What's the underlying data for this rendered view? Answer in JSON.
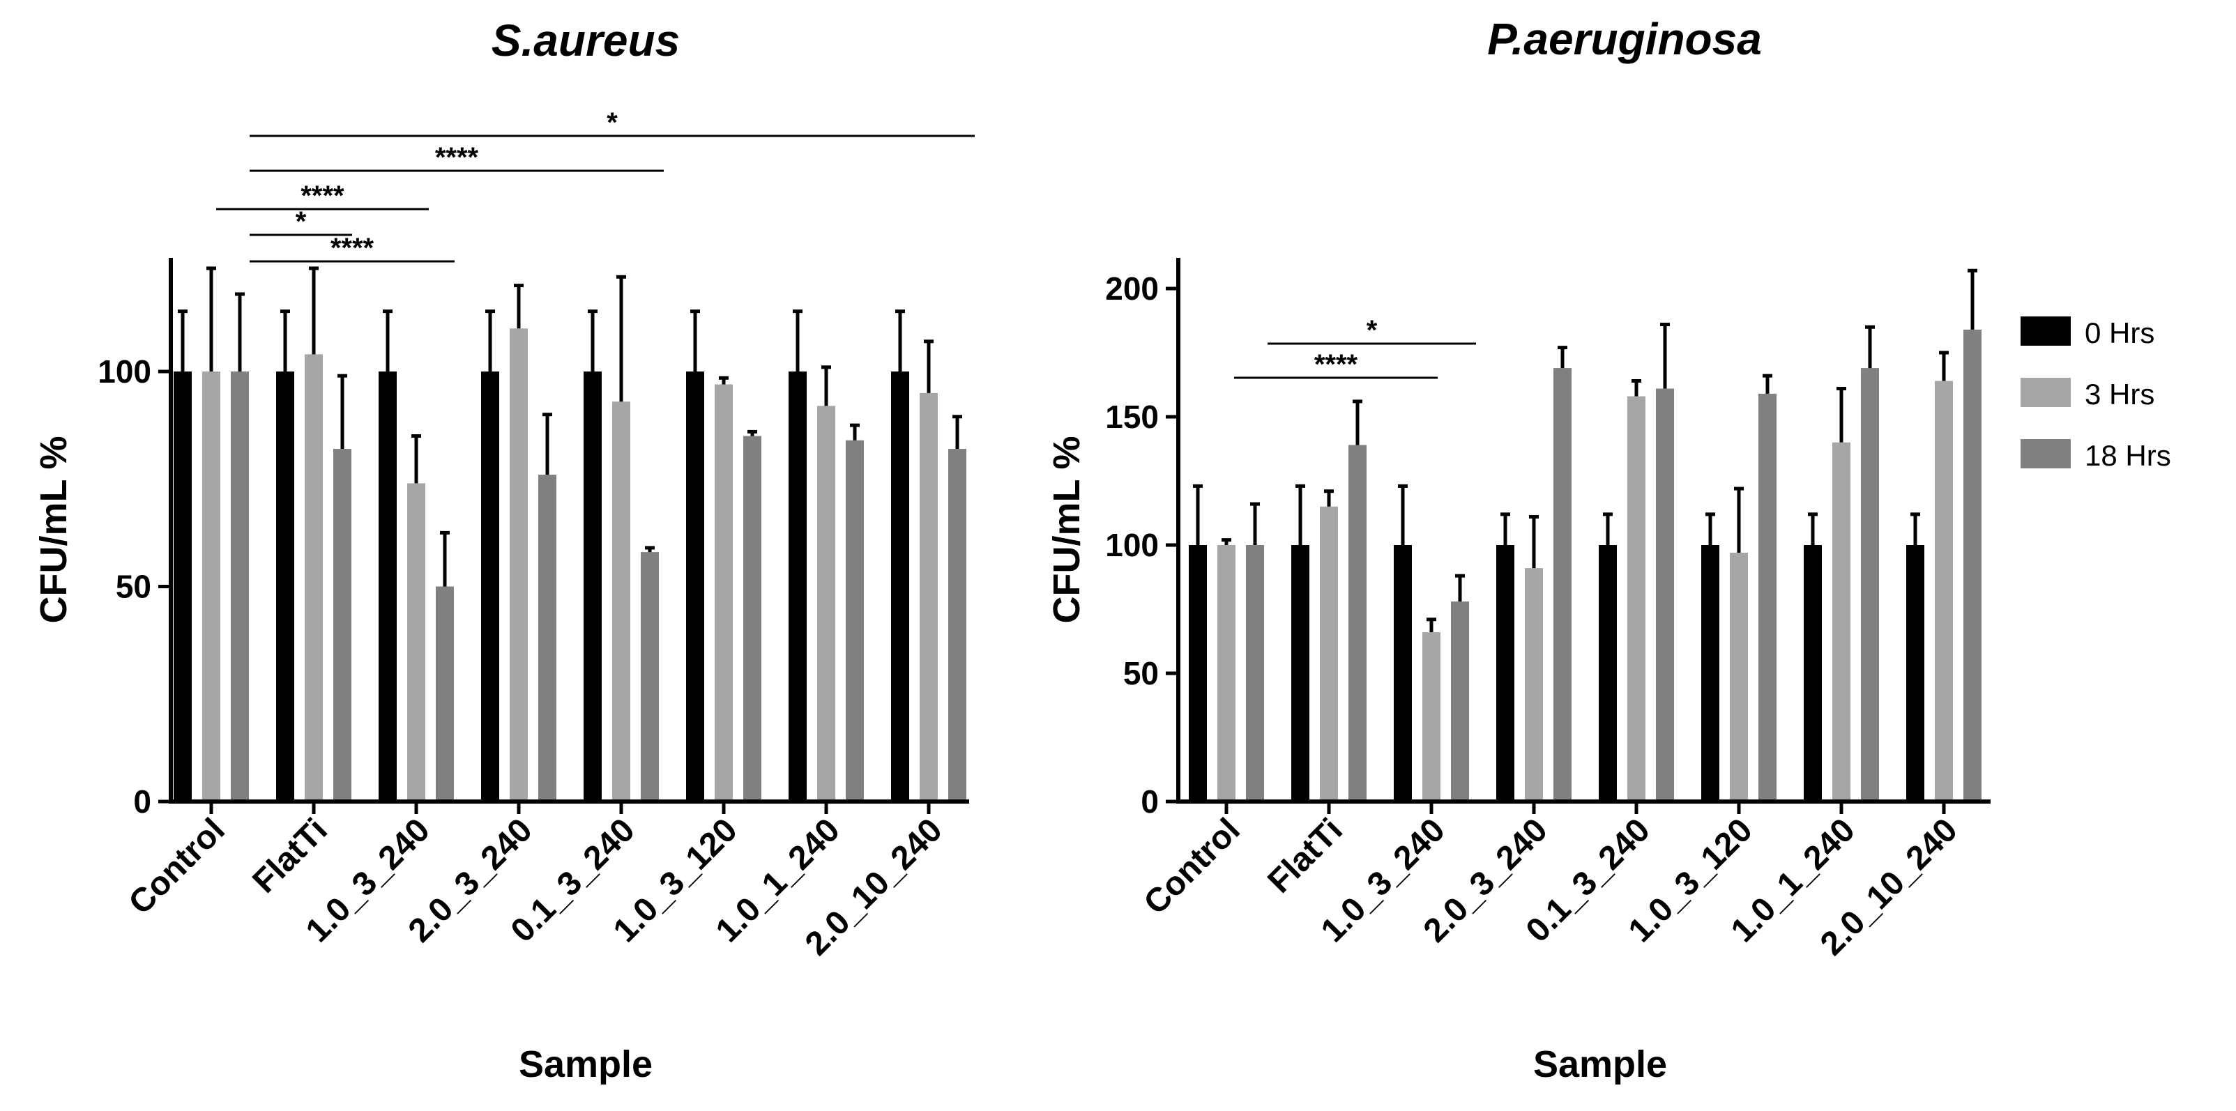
{
  "colors": {
    "series": [
      "#000000",
      "#a6a6a6",
      "#808080"
    ],
    "axis": "#000000",
    "error_bar": "#000000"
  },
  "legend": {
    "placement": "right",
    "items": [
      {
        "label": "0 Hrs",
        "color": "#000000"
      },
      {
        "label": "3 Hrs",
        "color": "#a6a6a6"
      },
      {
        "label": "18 Hrs",
        "color": "#808080"
      }
    ]
  },
  "chart_data": [
    {
      "type": "bar",
      "title": "S.aureus",
      "xlabel": "Sample",
      "ylabel": "CFU/mL %",
      "ylim": [
        0,
        125
      ],
      "yticks": [
        0,
        50,
        100
      ],
      "grid": false,
      "categories": [
        "Control",
        "FlatTi",
        "1.0_3_240",
        "2.0_3_240",
        "0.1_3_240",
        "1.0_3_120",
        "1.0_1_240",
        "2.0_10_240"
      ],
      "series": [
        {
          "name": "0 Hrs",
          "values": [
            100,
            100,
            100,
            100,
            100,
            100,
            100,
            100
          ],
          "errors": [
            14,
            14,
            14,
            14,
            14,
            14,
            14,
            14
          ]
        },
        {
          "name": "3 Hrs",
          "values": [
            100,
            104,
            74,
            110,
            93,
            97,
            92,
            95
          ],
          "errors": [
            24,
            20,
            11,
            10,
            29,
            1.5,
            9,
            12
          ]
        },
        {
          "name": "18 Hrs",
          "values": [
            100,
            82,
            50,
            76,
            58,
            85,
            84,
            82
          ],
          "errors": [
            18,
            17,
            12.5,
            14,
            1,
            1,
            3.5,
            7.5
          ]
        }
      ],
      "significance": [
        {
          "from": 0,
          "to": 7,
          "label": "*"
        },
        {
          "from": 0,
          "to": 4,
          "label": "****"
        },
        {
          "from": 0,
          "to": 2,
          "label": "****"
        },
        {
          "from": 0,
          "to": 1,
          "label": "*"
        },
        {
          "from": 0,
          "to": 2,
          "label": "****"
        }
      ]
    },
    {
      "type": "bar",
      "title": "P.aeruginosa",
      "xlabel": "Sample",
      "ylabel": "CFU/mL %",
      "ylim": [
        0,
        210
      ],
      "yticks": [
        0,
        50,
        100,
        150,
        200
      ],
      "grid": false,
      "categories": [
        "Control",
        "FlatTi",
        "1.0_3_240",
        "2.0_3_240",
        "0.1_3_240",
        "1.0_3_120",
        "1.0_1_240",
        "2.0_10_240"
      ],
      "series": [
        {
          "name": "0 Hrs",
          "values": [
            100,
            100,
            100,
            100,
            100,
            100,
            100,
            100
          ],
          "errors": [
            23,
            23,
            23,
            12,
            12,
            12,
            12,
            12
          ]
        },
        {
          "name": "3 Hrs",
          "values": [
            100,
            115,
            66,
            91,
            158,
            97,
            140,
            164
          ],
          "errors": [
            2,
            6,
            5,
            20,
            6,
            25,
            21,
            11
          ]
        },
        {
          "name": "18 Hrs",
          "values": [
            100,
            139,
            78,
            169,
            161,
            159,
            169,
            184
          ],
          "errors": [
            16,
            17,
            10,
            8,
            25,
            7,
            16,
            23
          ]
        }
      ],
      "significance": [
        {
          "from": 0,
          "to": 2,
          "label": "*"
        },
        {
          "from": 0,
          "to": 2,
          "label": "****"
        }
      ]
    }
  ]
}
